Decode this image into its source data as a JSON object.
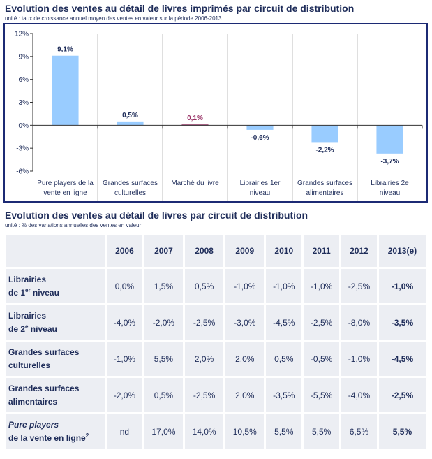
{
  "chart_section": {
    "title": "Evolution des ventes au détail de livres imprimés par circuit de distribution",
    "subtitle": "unité : taux de croissance annuel moyen des ventes en valeur sur la période 2006-2013"
  },
  "chart_data": {
    "type": "bar",
    "categories": [
      [
        "Pure players de la",
        "vente en ligne"
      ],
      [
        "Grandes surfaces",
        "culturelles"
      ],
      [
        "Marché du livre"
      ],
      [
        "Librairies 1er",
        "niveau"
      ],
      [
        "Grandes surfaces",
        "alimentaires"
      ],
      [
        "Librairies 2e",
        "niveau"
      ]
    ],
    "values": [
      9.1,
      0.5,
      0.1,
      -0.6,
      -2.2,
      -3.7
    ],
    "data_labels": [
      "9,1%",
      "0,5%",
      "0,1%",
      "-0,6%",
      "-2,2%",
      "-3,7%"
    ],
    "bar_colors": [
      "#99ccff",
      "#99ccff",
      "#993366",
      "#99ccff",
      "#99ccff",
      "#99ccff"
    ],
    "label_colors": [
      "#1f2d5a",
      "#1f2d5a",
      "#993366",
      "#1f2d5a",
      "#1f2d5a",
      "#1f2d5a"
    ],
    "ylim": [
      -6,
      12
    ],
    "yticks": [
      12,
      9,
      6,
      3,
      0,
      -3,
      -6
    ],
    "ytick_labels": [
      "12%",
      "9%",
      "6%",
      "3%",
      "0%",
      "-3%",
      "-6%"
    ],
    "grid": false,
    "title": "Evolution des ventes au détail de livres imprimés par circuit de distribution",
    "xlabel": "",
    "ylabel": ""
  },
  "table_section": {
    "title": "Evolution des ventes au détail de livres par circuit de distribution",
    "subtitle": "unité : % des variations annuelles des ventes en valeur",
    "headers": [
      "2006",
      "2007",
      "2008",
      "2009",
      "2010",
      "2011",
      "2012",
      "2013(e)"
    ],
    "rows": [
      {
        "label1": "Librairies",
        "label2": "de 1",
        "sup": "er",
        "label3": " niveau",
        "values": [
          "0,0%",
          "1,5%",
          "0,5%",
          "-1,0%",
          "-1,0%",
          "-1,0%",
          "-2,5%",
          "-1,0%"
        ]
      },
      {
        "label1": "Librairies",
        "label2": "de 2",
        "sup": "e",
        "label3": " niveau",
        "values": [
          "-4,0%",
          "-2,0%",
          "-2,5%",
          "-3,0%",
          "-4,5%",
          "-2,5%",
          "-8,0%",
          "-3,5%"
        ]
      },
      {
        "label1": "Grandes surfaces",
        "label2": "culturelles",
        "sup": "",
        "label3": "",
        "values": [
          "-1,0%",
          "5,5%",
          "2,0%",
          "2,0%",
          "0,5%",
          "-0,5%",
          "-1,0%",
          "-4,5%"
        ]
      },
      {
        "label1": "Grandes surfaces",
        "label2": "alimentaires",
        "sup": "",
        "label3": "",
        "values": [
          "-2,0%",
          "0,5%",
          "-2,5%",
          "2,0%",
          "-3,5%",
          "-5,5%",
          "-4,0%",
          "-2,5%"
        ]
      },
      {
        "label1": "Pure players",
        "label2": "de la vente en ligne",
        "sup": "2",
        "label3": "",
        "values": [
          "nd",
          "17,0%",
          "14,0%",
          "10,5%",
          "5,5%",
          "5,5%",
          "6,5%",
          "5,5%"
        ]
      }
    ]
  }
}
